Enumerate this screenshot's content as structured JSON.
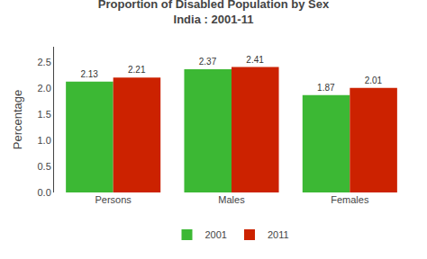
{
  "chart_data": {
    "type": "bar",
    "title": "Proportion of Disabled Population by Sex",
    "subtitle": "India : 2001-11",
    "categories": [
      "Persons",
      "Males",
      "Females"
    ],
    "series": [
      {
        "name": "2001",
        "color": "#3cb834",
        "values": [
          2.13,
          2.37,
          1.87
        ]
      },
      {
        "name": "2011",
        "color": "#cc2200",
        "values": [
          2.21,
          2.41,
          2.01
        ]
      }
    ],
    "ylabel": "Percentage",
    "ylim": [
      0.0,
      2.8
    ],
    "yticks": [
      {
        "value": 0,
        "label": "0.0"
      },
      0.5,
      {
        "value": 1,
        "label": "1.0"
      },
      1.5,
      {
        "value": 2,
        "label": "2.0"
      },
      2.5
    ],
    "data_labels": true,
    "grid": false,
    "legend": "bottom"
  }
}
